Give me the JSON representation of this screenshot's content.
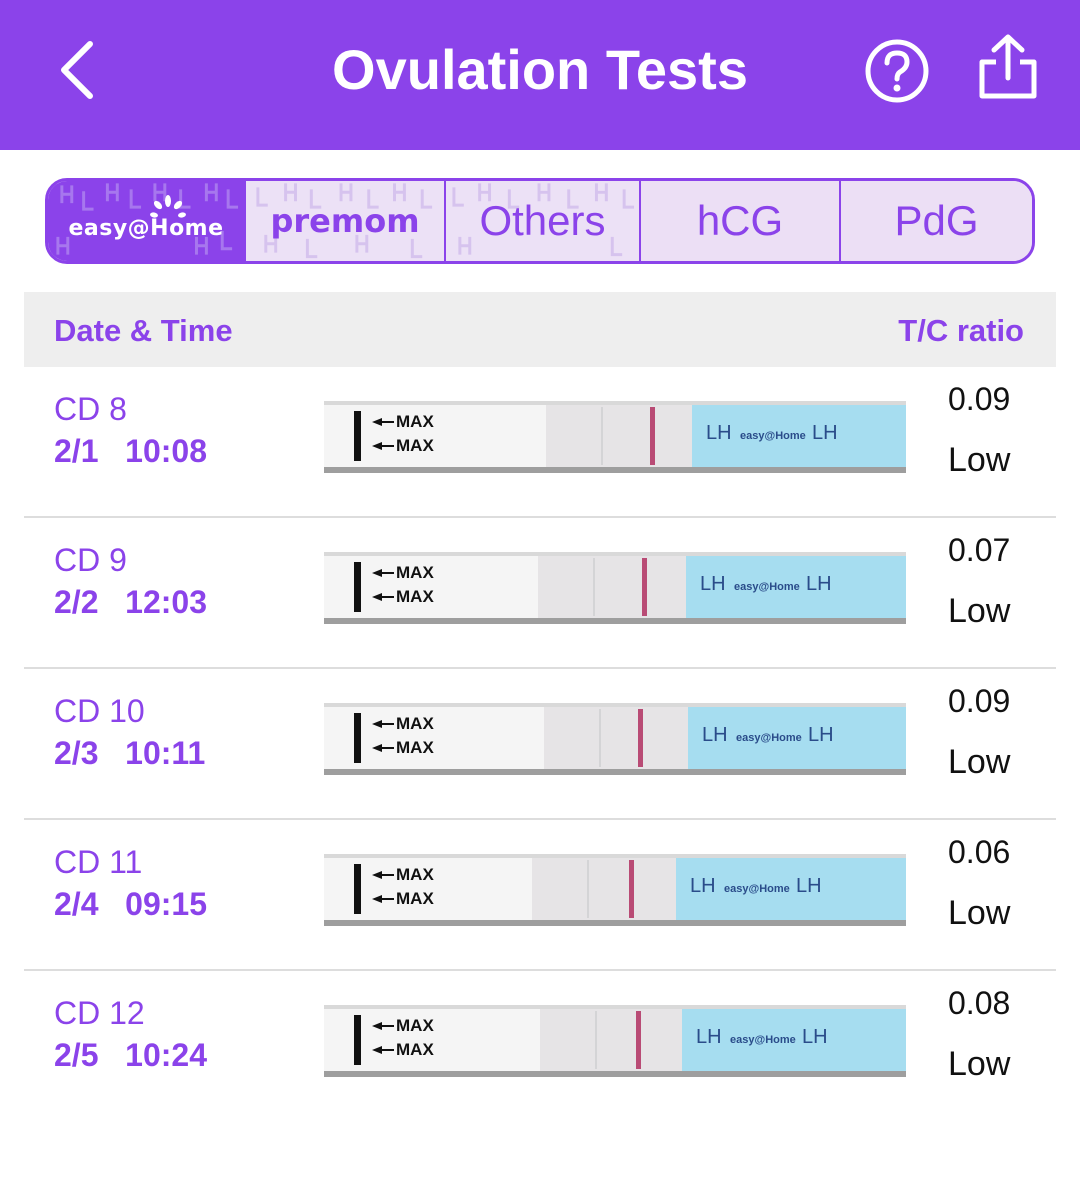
{
  "header": {
    "title": "Ovulation Tests",
    "back_icon": "chevron-left-icon",
    "help_icon": "help-circle-icon",
    "share_icon": "share-icon"
  },
  "tabs": [
    {
      "id": "easyhome",
      "label": "easy@Home",
      "active": true
    },
    {
      "id": "premom",
      "label": "premom",
      "active": false
    },
    {
      "id": "others",
      "label": "Others",
      "active": false
    },
    {
      "id": "hcg",
      "label": "hCG",
      "active": false
    },
    {
      "id": "pdg",
      "label": "PdG",
      "active": false
    }
  ],
  "table": {
    "col_left": "Date & Time",
    "col_right": "T/C ratio"
  },
  "strip_text": {
    "max": "MAX",
    "lh": "LH",
    "brand": "easy@Home"
  },
  "rows": [
    {
      "cd": "CD 8",
      "datetime": "2/1   10:08",
      "ratio": "0.09",
      "level": "Low"
    },
    {
      "cd": "CD 9",
      "datetime": "2/2   12:03",
      "ratio": "0.07",
      "level": "Low"
    },
    {
      "cd": "CD 10",
      "datetime": "2/3   10:11",
      "ratio": "0.09",
      "level": "Low"
    },
    {
      "cd": "CD 11",
      "datetime": "2/4   09:15",
      "ratio": "0.06",
      "level": "Low"
    },
    {
      "cd": "CD 12",
      "datetime": "2/5   10:24",
      "ratio": "0.08",
      "level": "Low"
    }
  ],
  "colors": {
    "accent": "#8b43ea",
    "tab_bg": "#ecdff5",
    "strip_blue": "#a6ddf0",
    "line_red": "#b03060"
  }
}
